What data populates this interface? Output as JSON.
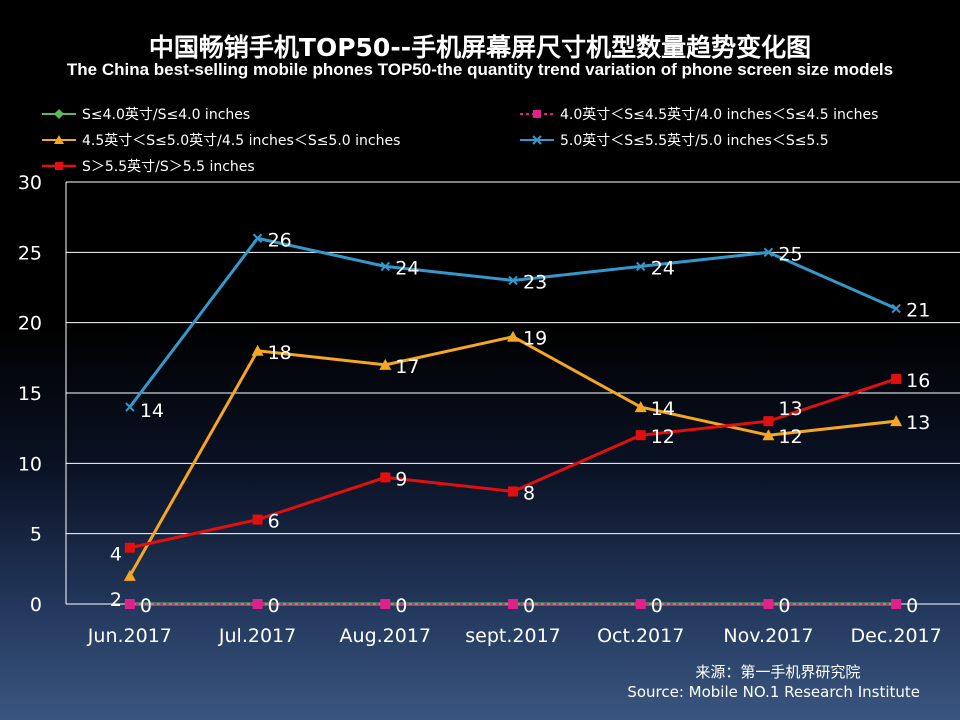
{
  "title": "中国畅销手机TOP50--手机屏幕屏尺寸机型数量趋势变化图",
  "subtitle": "The China best-selling mobile phones TOP50-the quantity trend variation of phone screen size models",
  "source_cn": "来源：第一手机界研究院",
  "source_en": "Source: Mobile NO.1 Research Institute",
  "chart_data": {
    "type": "line",
    "categories": [
      "Jun.2017",
      "Jul.2017",
      "Aug.2017",
      "sept.2017",
      "Oct.2017",
      "Nov.2017",
      "Dec.2017"
    ],
    "ylim": [
      0,
      30
    ],
    "yticks": [
      0,
      5,
      10,
      15,
      20,
      25,
      30
    ],
    "grid": true,
    "series": [
      {
        "name": "S≤4.0英寸/S≤4.0 inches",
        "color": "#5cb85c",
        "marker": "diamond",
        "dashed": false,
        "values": [
          0,
          0,
          0,
          0,
          0,
          0,
          0
        ],
        "show_labels": false
      },
      {
        "name": "4.0英寸＜S≤4.5英寸/4.0 inches＜S≤4.5 inches",
        "color": "#e0218a",
        "marker": "square",
        "dashed": true,
        "values": [
          0,
          0,
          0,
          0,
          0,
          0,
          0
        ],
        "show_labels": true
      },
      {
        "name": "4.5英寸＜S≤5.0英寸/4.5 inches＜S≤5.0 inches",
        "color": "#f5a623",
        "marker": "triangle",
        "dashed": false,
        "values": [
          2,
          18,
          17,
          19,
          14,
          12,
          13
        ],
        "show_labels": true
      },
      {
        "name": "5.0英寸＜S≤5.5英寸/5.0 inches＜S≤5.5",
        "color": "#3399cc",
        "marker": "x",
        "dashed": false,
        "values": [
          14,
          26,
          24,
          23,
          24,
          25,
          21
        ],
        "show_labels": true
      },
      {
        "name": "S＞5.5英寸/S＞5.5 inches",
        "color": "#e01010",
        "marker": "square",
        "dashed": false,
        "values": [
          4,
          6,
          9,
          8,
          12,
          13,
          16
        ],
        "show_labels": true
      }
    ]
  }
}
